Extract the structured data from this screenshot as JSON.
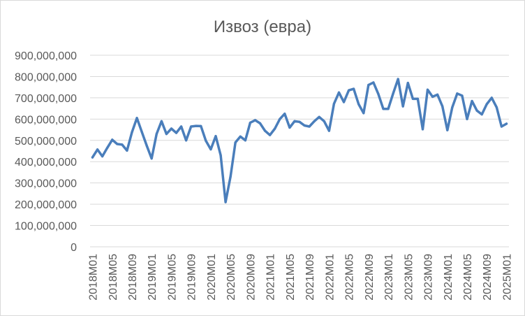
{
  "chart_data": {
    "type": "line",
    "title": "Извоз (евра)",
    "xlabel": "",
    "ylabel": "",
    "ylim": [
      0,
      900000000
    ],
    "y_ticks": [
      0,
      100000000,
      200000000,
      300000000,
      400000000,
      500000000,
      600000000,
      700000000,
      800000000,
      900000000
    ],
    "y_tick_labels": [
      "0",
      "100,000,000",
      "200,000,000",
      "300,000,000",
      "400,000,000",
      "500,000,000",
      "600,000,000",
      "700,000,000",
      "800,000,000",
      "900,000,000"
    ],
    "x_tick_labels": [
      "2018M01",
      "2018M05",
      "2018M09",
      "2019M01",
      "2019M05",
      "2019M09",
      "2020M01",
      "2020M05",
      "2020M09",
      "2021M01",
      "2021M05",
      "2021M09",
      "2022M01",
      "2022M05",
      "2022M09",
      "2023M01",
      "2023M05",
      "2023M09",
      "2024M01",
      "2024M05",
      "2024M09",
      "2025M01"
    ],
    "grid": true,
    "legend": "none",
    "line_color": "#4a7ebb",
    "series": [
      {
        "values": [
          420000000,
          457000000,
          425000000,
          465000000,
          503000000,
          483000000,
          480000000,
          452000000,
          538000000,
          605000000,
          540000000,
          475000000,
          415000000,
          530000000,
          590000000,
          530000000,
          555000000,
          535000000,
          565000000,
          500000000,
          565000000,
          568000000,
          567000000,
          498000000,
          458000000,
          520000000,
          430000000,
          210000000,
          330000000,
          490000000,
          518000000,
          500000000,
          583000000,
          595000000,
          580000000,
          545000000,
          525000000,
          555000000,
          600000000,
          625000000,
          560000000,
          590000000,
          587000000,
          570000000,
          565000000,
          590000000,
          610000000,
          590000000,
          545000000,
          672000000,
          725000000,
          680000000,
          735000000,
          742000000,
          670000000,
          628000000,
          760000000,
          772000000,
          718000000,
          648000000,
          648000000,
          720000000,
          788000000,
          660000000,
          770000000,
          695000000,
          695000000,
          552000000,
          738000000,
          705000000,
          715000000,
          660000000,
          548000000,
          655000000,
          720000000,
          710000000,
          600000000,
          685000000,
          640000000,
          622000000,
          670000000,
          700000000,
          655000000,
          565000000,
          578000000
        ]
      }
    ]
  }
}
